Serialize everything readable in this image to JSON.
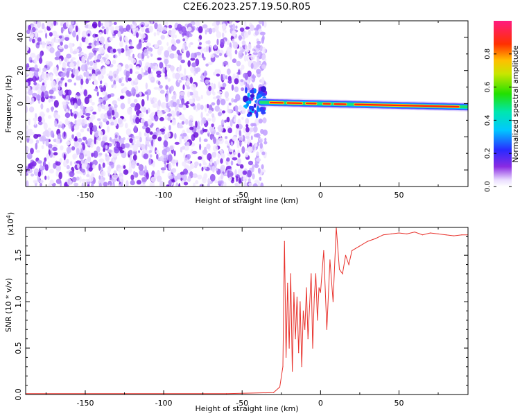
{
  "title": "C2E6.2023.257.19.50.R05",
  "colors": {
    "snr_line": "#e8302a",
    "scatter": "#7a1fe0",
    "background": "#ffffff",
    "frame": "#000000"
  },
  "chart_data": [
    {
      "type": "heatmap",
      "name": "spectrogram",
      "xlabel": "Height of straight line (km)",
      "ylabel": "Frequency (Hz)",
      "xlim": [
        -188,
        94
      ],
      "ylim": [
        -50,
        50
      ],
      "x_ticks": [
        -150,
        -100,
        -50,
        0,
        50
      ],
      "x_tick_labels": [
        "-150",
        "-100",
        "-50",
        "0",
        "50"
      ],
      "y_ticks": [
        40,
        20,
        0,
        -20,
        -40
      ],
      "y_tick_labels": [
        "40",
        "20",
        "0",
        "-20",
        "-40"
      ],
      "noise_region_x": [
        -188,
        -38
      ],
      "signal_band": {
        "x": [
          -48,
          94
        ],
        "frequency_start": 1,
        "frequency_end": -2
      },
      "colorbar": {
        "label": "Normalized spectral amplitude",
        "range": [
          0,
          1
        ],
        "ticks": [
          0.0,
          0.2,
          0.4,
          0.6,
          0.8
        ],
        "tick_labels": [
          "0.0",
          "0.2",
          "0.4",
          "0.6",
          "0.8"
        ],
        "colormap": "rainbow (violet-blue-cyan-green-yellow-red-magenta)"
      }
    },
    {
      "type": "line",
      "name": "snr",
      "xlabel": "Height of straight line (km)",
      "ylabel": "SNR (10 * v/v)",
      "scale_label": "(x10",
      "scale_exponent": "4",
      "xlim": [
        -188,
        94
      ],
      "ylim": [
        0,
        1.8
      ],
      "x_ticks": [
        -150,
        -100,
        -50,
        0,
        50
      ],
      "x_tick_labels": [
        "-150",
        "-100",
        "-50",
        "0",
        "50"
      ],
      "y_ticks": [
        0.0,
        0.5,
        1.0,
        1.5
      ],
      "y_tick_labels": [
        "0.0",
        "0.5",
        "1.0",
        "1.5"
      ],
      "series": [
        {
          "x": [
            -188,
            -150,
            -100,
            -60,
            -30,
            -26,
            -24,
            -23,
            -22,
            -21,
            -20,
            -19,
            -18,
            -17,
            -16,
            -15,
            -14,
            -13,
            -12,
            -11,
            -10,
            -9,
            -8,
            -7,
            -6,
            -5,
            -4,
            -3,
            -2,
            -1,
            0,
            2,
            4,
            6,
            8,
            10,
            12,
            14,
            16,
            18,
            20,
            25,
            30,
            35,
            40,
            45,
            50,
            55,
            60,
            65,
            70,
            75,
            80,
            85,
            90,
            94
          ],
          "values": [
            0.01,
            0.01,
            0.01,
            0.01,
            0.02,
            0.08,
            0.3,
            1.65,
            0.4,
            1.2,
            0.5,
            1.3,
            0.25,
            1.1,
            0.6,
            1.05,
            0.45,
            1.0,
            0.3,
            0.9,
            0.7,
            1.15,
            0.6,
            0.95,
            1.3,
            0.5,
            1.05,
            1.3,
            0.8,
            1.15,
            1.1,
            1.55,
            0.7,
            1.45,
            1.0,
            1.8,
            1.35,
            1.3,
            1.5,
            1.4,
            1.55,
            1.6,
            1.65,
            1.68,
            1.72,
            1.73,
            1.74,
            1.73,
            1.75,
            1.72,
            1.74,
            1.73,
            1.72,
            1.71,
            1.72,
            1.72
          ]
        }
      ]
    }
  ]
}
